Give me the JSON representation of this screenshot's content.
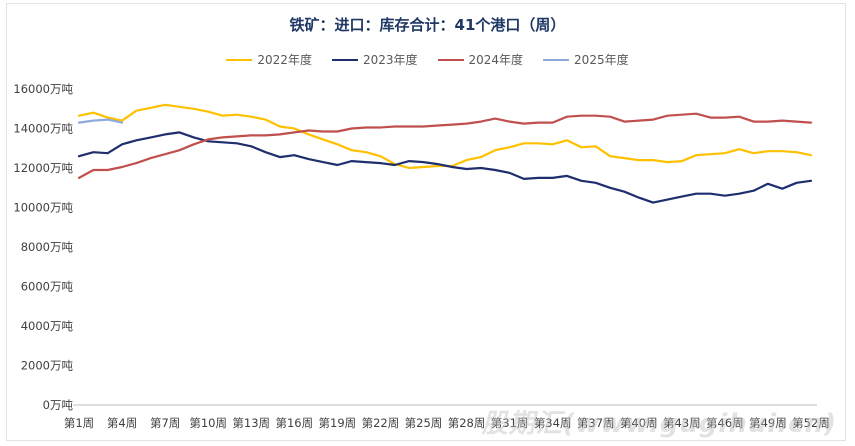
{
  "chart_data": {
    "type": "line",
    "title": "铁矿：进口：库存合计：41个港口（周）",
    "legend_position": "top",
    "ylim": [
      0,
      16000
    ],
    "yticks": [
      0,
      2000,
      4000,
      6000,
      8000,
      10000,
      12000,
      14000,
      16000
    ],
    "ytick_labels": [
      "0万吨",
      "2000万吨",
      "4000万吨",
      "6000万吨",
      "8000万吨",
      "10000万吨",
      "12000万吨",
      "14000万吨",
      "16000万吨"
    ],
    "x_count": 52,
    "xtick_labels": [
      {
        "index": 1,
        "label": "第1周"
      },
      {
        "index": 4,
        "label": "第4周"
      },
      {
        "index": 7,
        "label": "第7周"
      },
      {
        "index": 10,
        "label": "第10周"
      },
      {
        "index": 13,
        "label": "第13周"
      },
      {
        "index": 16,
        "label": "第16周"
      },
      {
        "index": 19,
        "label": "第19周"
      },
      {
        "index": 22,
        "label": "第22周"
      },
      {
        "index": 25,
        "label": "第25周"
      },
      {
        "index": 28,
        "label": "第28周"
      },
      {
        "index": 31,
        "label": "第31周"
      },
      {
        "index": 34,
        "label": "第34周"
      },
      {
        "index": 37,
        "label": "第37周"
      },
      {
        "index": 40,
        "label": "第40周"
      },
      {
        "index": 43,
        "label": "第43周"
      },
      {
        "index": 46,
        "label": "第46周"
      },
      {
        "index": 49,
        "label": "第49周"
      },
      {
        "index": 52,
        "label": "第52周"
      }
    ],
    "grid": false,
    "series": [
      {
        "name": "2022年度",
        "color": "#FFC000",
        "values": [
          14650,
          14800,
          14550,
          14400,
          14900,
          15050,
          15200,
          15100,
          15000,
          14850,
          14650,
          14700,
          14600,
          14450,
          14100,
          14000,
          13700,
          13450,
          13200,
          12900,
          12800,
          12600,
          12200,
          12000,
          12050,
          12100,
          12100,
          12400,
          12550,
          12900,
          13050,
          13250,
          13250,
          13200,
          13400,
          13050,
          13100,
          12600,
          12500,
          12400,
          12400,
          12300,
          12350,
          12650,
          12700,
          12750,
          12950,
          12750,
          12850,
          12850,
          12800,
          12650
        ]
      },
      {
        "name": "2023年度",
        "color": "#1F2F6E",
        "values": [
          12600,
          12800,
          12750,
          13200,
          13400,
          13550,
          13700,
          13800,
          13550,
          13350,
          13300,
          13250,
          13100,
          12800,
          12550,
          12650,
          12450,
          12300,
          12150,
          12350,
          12300,
          12250,
          12150,
          12350,
          12300,
          12200,
          12050,
          11950,
          12000,
          11900,
          11750,
          11450,
          11500,
          11500,
          11600,
          11350,
          11250,
          11000,
          10800,
          10500,
          10250,
          10400,
          10550,
          10700,
          10700,
          10600,
          10700,
          10850,
          11200,
          10950,
          11250,
          11350
        ]
      },
      {
        "name": "2024年度",
        "color": "#C0504D",
        "values": [
          11500,
          11900,
          11900,
          12050,
          12250,
          12500,
          12700,
          12900,
          13200,
          13450,
          13550,
          13600,
          13650,
          13650,
          13700,
          13800,
          13900,
          13850,
          13850,
          14000,
          14050,
          14050,
          14100,
          14100,
          14100,
          14150,
          14200,
          14250,
          14350,
          14500,
          14350,
          14250,
          14300,
          14300,
          14600,
          14650,
          14650,
          14600,
          14350,
          14400,
          14450,
          14650,
          14700,
          14750,
          14550,
          14550,
          14600,
          14350,
          14350,
          14400,
          14350,
          14300
        ]
      },
      {
        "name": "2025年度",
        "color": "#8EA9DB",
        "values": [
          14300,
          14400,
          14450,
          14300
        ]
      }
    ]
  },
  "watermark": "股期汇(www.gugihui.cn)"
}
